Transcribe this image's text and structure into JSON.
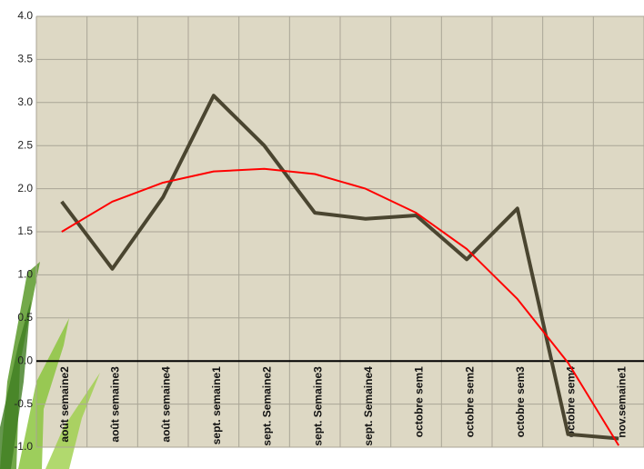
{
  "chart_data": {
    "type": "line",
    "categories": [
      "août semaine2",
      "août semaine3",
      "août semaine4",
      "sept. semaine1",
      "sept. Semaine2",
      "sept. Semaine3",
      "sept. Semaine4",
      "octobre sem1",
      "octobre sem2",
      "octobre sem3",
      "octobre sem4",
      "nov.semaine1"
    ],
    "series": [
      {
        "color": "#4a4530",
        "values": [
          1.85,
          1.07,
          1.9,
          3.08,
          2.5,
          1.72,
          1.65,
          1.69,
          1.18,
          1.77,
          -0.85,
          -0.9
        ]
      },
      {
        "color": "#ff0000",
        "values": [
          1.5,
          1.85,
          2.07,
          2.2,
          2.23,
          2.17,
          2.0,
          1.72,
          1.3,
          0.72,
          -0.02,
          -0.98
        ]
      }
    ],
    "ylim": [
      -1,
      4
    ],
    "yticks": [
      {
        "value": -1,
        "label": "-1.0"
      },
      {
        "value": -0.5,
        "label": "-0.5"
      },
      {
        "value": 0,
        "label": "0.0"
      },
      {
        "value": 0.5,
        "label": "0.5"
      },
      {
        "value": 1,
        "label": "1.0"
      },
      {
        "value": 1.5,
        "label": "1.5"
      },
      {
        "value": 2,
        "label": "2.0"
      },
      {
        "value": 2.5,
        "label": "2.5"
      },
      {
        "value": 3,
        "label": "3.0"
      },
      {
        "value": 3.5,
        "label": "3.5"
      },
      {
        "value": 4,
        "label": "4.0"
      }
    ],
    "grid": true
  }
}
